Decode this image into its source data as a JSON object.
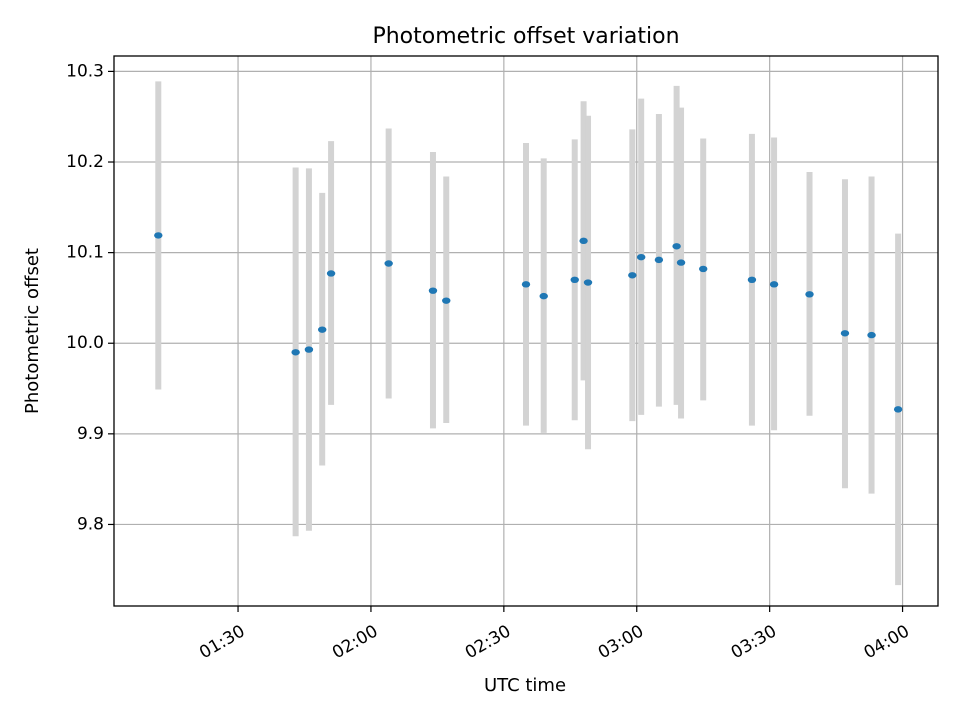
{
  "chart_data": {
    "type": "scatter",
    "title": "Photometric offset variation",
    "xlabel": "UTC time",
    "ylabel": "Photometric offset",
    "x_ticks": [
      "01:30",
      "02:00",
      "02:30",
      "03:00",
      "03:30",
      "04:00"
    ],
    "y_ticks": [
      "9.8",
      "9.9",
      "10.0",
      "10.1",
      "10.2",
      "10.3"
    ],
    "xlim": [
      "01:02",
      "04:08"
    ],
    "ylim": [
      9.71,
      10.317
    ],
    "grid": true,
    "marker_color": "#1f77b4",
    "errorbar_color": "#d3d3d3",
    "series": [
      {
        "points": [
          {
            "x": "01:12",
            "y": 10.119,
            "lo": 9.949,
            "hi": 10.289
          },
          {
            "x": "01:43",
            "y": 9.99,
            "lo": 9.787,
            "hi": 10.194
          },
          {
            "x": "01:46",
            "y": 9.993,
            "lo": 9.793,
            "hi": 10.193
          },
          {
            "x": "01:49",
            "y": 10.015,
            "lo": 9.865,
            "hi": 10.166
          },
          {
            "x": "01:51",
            "y": 10.077,
            "lo": 9.932,
            "hi": 10.223
          },
          {
            "x": "02:04",
            "y": 10.088,
            "lo": 9.939,
            "hi": 10.237
          },
          {
            "x": "02:14",
            "y": 10.058,
            "lo": 9.906,
            "hi": 10.211
          },
          {
            "x": "02:17",
            "y": 10.047,
            "lo": 9.912,
            "hi": 10.184
          },
          {
            "x": "02:35",
            "y": 10.065,
            "lo": 9.909,
            "hi": 10.221
          },
          {
            "x": "02:39",
            "y": 10.052,
            "lo": 9.901,
            "hi": 10.204
          },
          {
            "x": "02:46",
            "y": 10.07,
            "lo": 9.915,
            "hi": 10.225
          },
          {
            "x": "02:48",
            "y": 10.113,
            "lo": 9.959,
            "hi": 10.267
          },
          {
            "x": "02:49",
            "y": 10.067,
            "lo": 9.883,
            "hi": 10.251
          },
          {
            "x": "02:59",
            "y": 10.075,
            "lo": 9.914,
            "hi": 10.236
          },
          {
            "x": "03:01",
            "y": 10.095,
            "lo": 9.921,
            "hi": 10.27
          },
          {
            "x": "03:05",
            "y": 10.092,
            "lo": 9.93,
            "hi": 10.253
          },
          {
            "x": "03:09",
            "y": 10.107,
            "lo": 9.932,
            "hi": 10.284
          },
          {
            "x": "03:10",
            "y": 10.089,
            "lo": 9.917,
            "hi": 10.26
          },
          {
            "x": "03:15",
            "y": 10.082,
            "lo": 9.937,
            "hi": 10.226
          },
          {
            "x": "03:26",
            "y": 10.07,
            "lo": 9.909,
            "hi": 10.231
          },
          {
            "x": "03:31",
            "y": 10.065,
            "lo": 9.904,
            "hi": 10.227
          },
          {
            "x": "03:39",
            "y": 10.054,
            "lo": 9.92,
            "hi": 10.189
          },
          {
            "x": "03:47",
            "y": 10.011,
            "lo": 9.84,
            "hi": 10.181
          },
          {
            "x": "03:53",
            "y": 10.009,
            "lo": 9.834,
            "hi": 10.184
          },
          {
            "x": "03:59",
            "y": 9.927,
            "lo": 9.733,
            "hi": 10.121
          }
        ]
      }
    ]
  }
}
